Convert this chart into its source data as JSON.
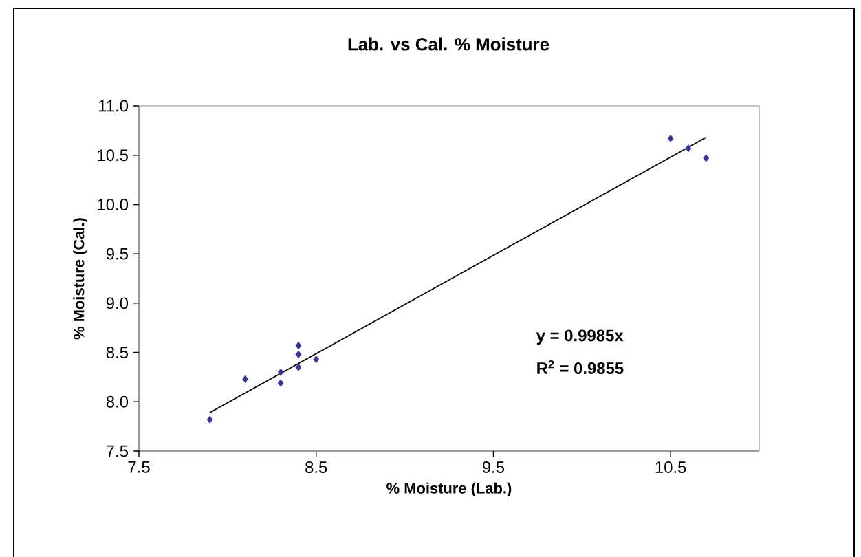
{
  "chart_data": {
    "type": "scatter",
    "title": "Lab. vs Cal.  % Moisture",
    "xlabel": "% Moisture (Lab.)",
    "ylabel": "% Moisture (Cal.)",
    "annotations": [
      "y = 0.9985x",
      "R$^{2}$ = 0.9855"
    ],
    "xlim": [
      7.5,
      11.0
    ],
    "ylim": [
      7.5,
      11.0
    ],
    "xticks": [
      7.5,
      8.5,
      9.5,
      10.5
    ],
    "yticks": [
      7.5,
      {
        "value": 8.0,
        "label": "8.0"
      },
      8.5,
      {
        "value": 9.0,
        "label": "9.0"
      },
      9.5,
      {
        "value": 10.0,
        "label": "10.0"
      },
      10.5,
      {
        "value": 11.0,
        "label": "11.0"
      }
    ],
    "grid": false,
    "series": [
      {
        "color": "#333399",
        "marker": "diamond",
        "x": [
          7.9,
          8.1,
          8.3,
          8.3,
          8.4,
          8.4,
          8.4,
          8.5,
          10.5,
          10.6,
          10.7
        ],
        "values": [
          7.82,
          8.23,
          8.3,
          8.19,
          8.57,
          8.48,
          8.35,
          8.43,
          10.67,
          10.57,
          10.47
        ]
      },
      {
        "type": "line",
        "color": "#000000",
        "marker": "none",
        "line_style": "solid",
        "x": [
          7.9,
          10.7
        ],
        "values": [
          7.89,
          10.68
        ]
      }
    ]
  }
}
